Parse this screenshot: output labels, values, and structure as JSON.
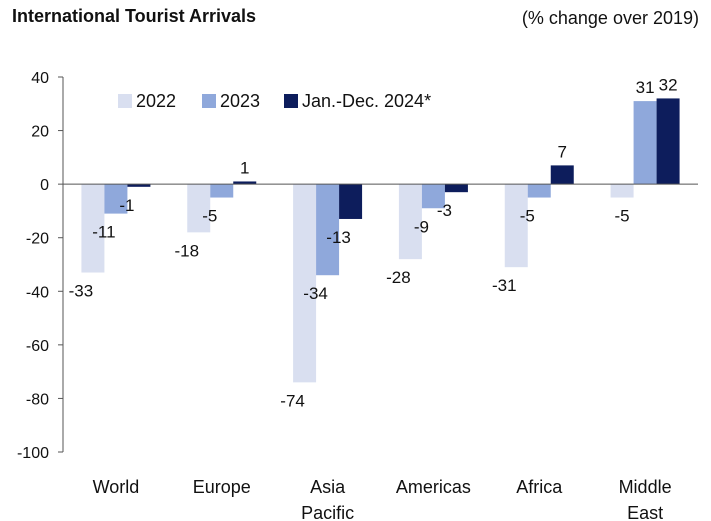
{
  "chart_data": {
    "type": "bar",
    "title": "International Tourist Arrivals",
    "subtitle": "(% change over 2019)",
    "categories": [
      "World",
      "Europe",
      "Asia Pacific",
      "Americas",
      "Africa",
      "Middle East"
    ],
    "category_lines": [
      [
        "World"
      ],
      [
        "Europe"
      ],
      [
        "Asia",
        "Pacific"
      ],
      [
        "Americas"
      ],
      [
        "Africa"
      ],
      [
        "Middle",
        "East"
      ]
    ],
    "series": [
      {
        "name": "2022",
        "color": "#d9dff0",
        "values": [
          -33,
          -18,
          -74,
          -28,
          -31,
          -5
        ]
      },
      {
        "name": "2023",
        "color": "#8fa8db",
        "values": [
          -11,
          -5,
          -34,
          -9,
          -5,
          31
        ]
      },
      {
        "name": "Jan.-Dec. 2024*",
        "color": "#0d1d5c",
        "values": [
          -1,
          1,
          -13,
          -3,
          7,
          32
        ]
      }
    ],
    "ylim": [
      -100,
      40
    ],
    "yticks": [
      40,
      20,
      0,
      -20,
      -40,
      -60,
      -80,
      -100
    ],
    "xlabel": "",
    "ylabel": "",
    "legend_position": "top-left",
    "grid": false
  }
}
